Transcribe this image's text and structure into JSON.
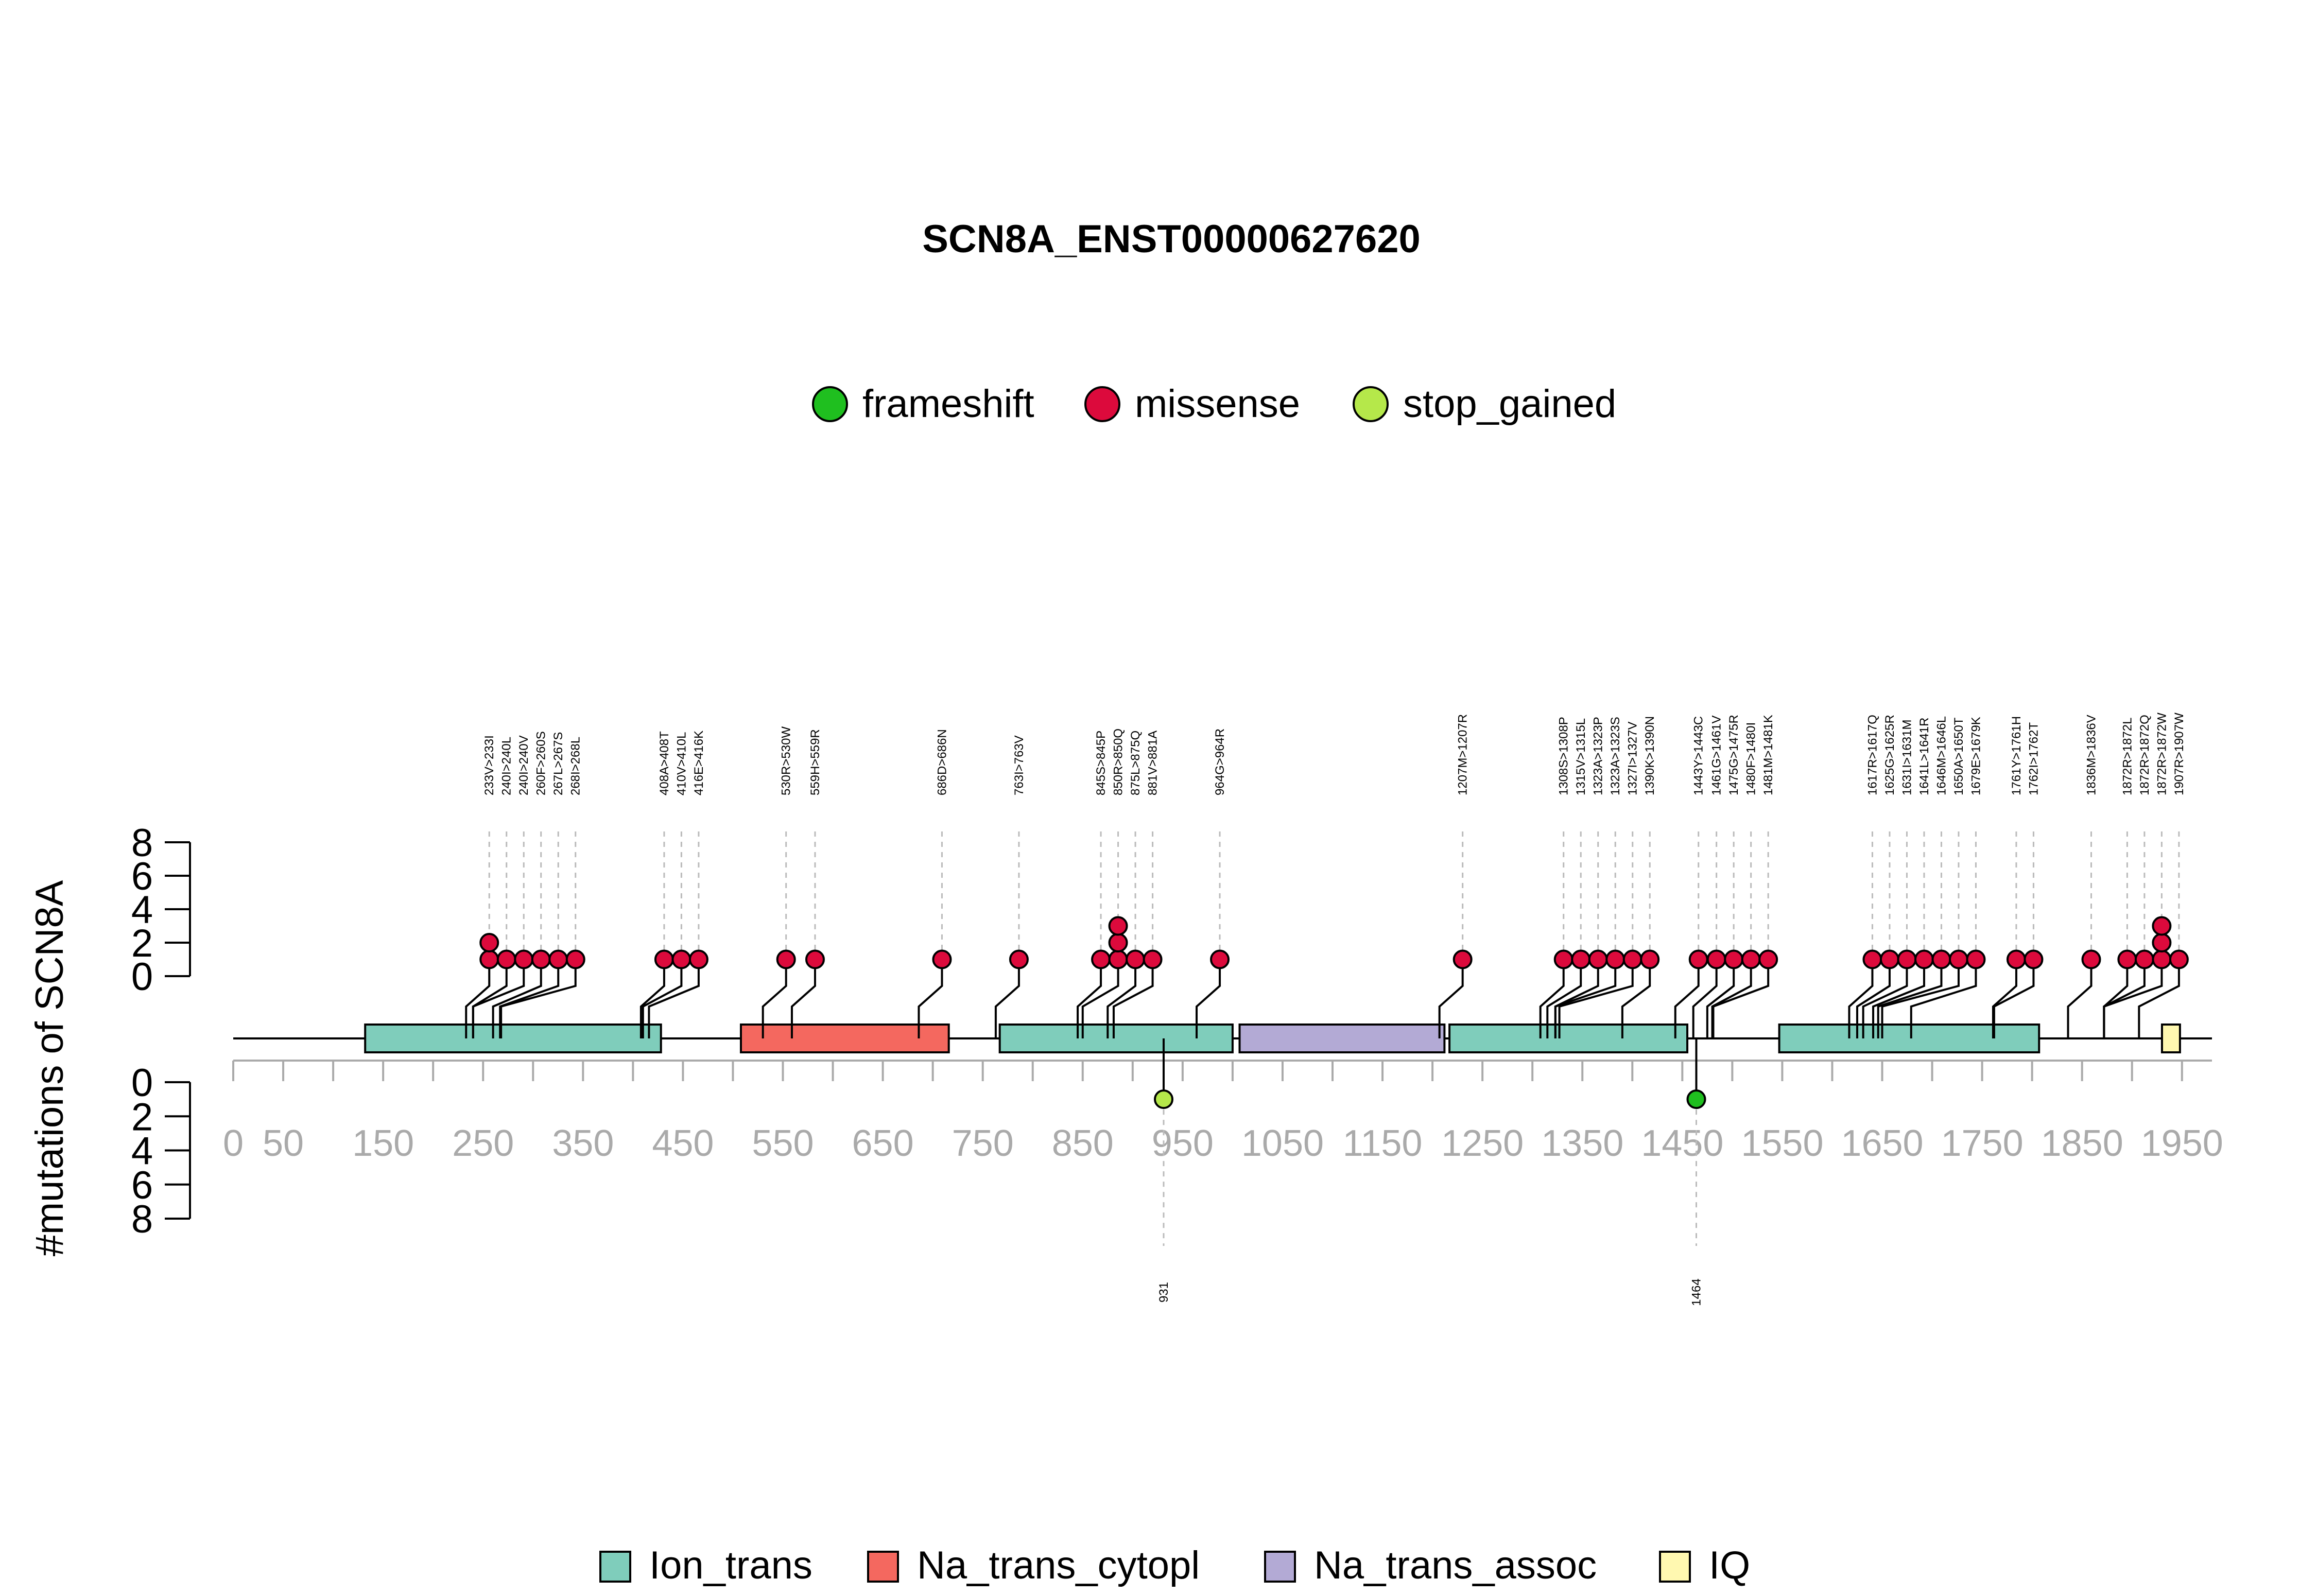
{
  "chart_data": {
    "type": "lollipop",
    "title": "SCN8A_ENST00000627620",
    "ylabel": "#mutations of SCN8A",
    "protein_length": 1980,
    "xlim": [
      0,
      1980
    ],
    "x_ticks": [
      "0",
      "50",
      "150",
      "250",
      "350",
      "450",
      "550",
      "650",
      "750",
      "850",
      "950",
      "1050",
      "1150",
      "1250",
      "1350",
      "1450",
      "1550",
      "1650",
      "1750",
      "1850",
      "1950"
    ],
    "upper_y_ticks": [
      "0",
      "2",
      "4",
      "6",
      "8"
    ],
    "lower_y_ticks": [
      "0",
      "2",
      "4",
      "6",
      "8"
    ],
    "ylim": [
      0,
      8
    ],
    "colors": {
      "frameshift": "#1fbf1f",
      "missense": "#dc0a3c",
      "stop_gained": "#b5e84a",
      "Ion_trans": "#7fcdbb",
      "Na_trans_cytopl": "#f4685f",
      "Na_trans_assoc": "#b3aad5",
      "IQ": "#fff8b0"
    },
    "variant_legend": [
      {
        "name": "frameshift",
        "color": "#1fbf1f"
      },
      {
        "name": "missense",
        "color": "#dc0a3c"
      },
      {
        "name": "stop_gained",
        "color": "#b5e84a"
      }
    ],
    "domain_legend": [
      {
        "name": "Ion_trans",
        "color": "#7fcdbb"
      },
      {
        "name": "Na_trans_cytopl",
        "color": "#f4685f"
      },
      {
        "name": "Na_trans_assoc",
        "color": "#b3aad5"
      },
      {
        "name": "IQ",
        "color": "#fff8b0"
      }
    ],
    "domains": [
      {
        "name": "Ion_trans",
        "start": 132,
        "end": 428
      },
      {
        "name": "Na_trans_cytopl",
        "start": 508,
        "end": 716
      },
      {
        "name": "Na_trans_assoc",
        "start": 1007,
        "end": 1212
      },
      {
        "name": "Ion_trans",
        "start": 767,
        "end": 1000
      },
      {
        "name": "Ion_trans",
        "start": 1217,
        "end": 1455
      },
      {
        "name": "Ion_trans",
        "start": 1547,
        "end": 1807
      },
      {
        "name": "IQ",
        "start": 1930,
        "end": 1948
      }
    ],
    "upper_groups": [
      {
        "labels": [
          "233V>233I"
        ],
        "positions": [
          233
        ],
        "count": 2
      },
      {
        "labels": [
          "240I>240L",
          "240I>240V",
          "260F>260S",
          "267L>267S",
          "268I>268L"
        ],
        "positions": [
          240,
          240,
          260,
          267,
          268
        ],
        "count": 1
      },
      {
        "labels": [
          "408A>408T",
          "410V>410L"
        ],
        "positions": [
          408,
          410
        ],
        "count": 1
      },
      {
        "labels": [
          "416E>416K"
        ],
        "positions": [
          416
        ],
        "count": 1
      },
      {
        "labels": [
          "530R>530W"
        ],
        "positions": [
          530
        ],
        "count": 1
      },
      {
        "labels": [
          "559H>559R"
        ],
        "positions": [
          559
        ],
        "count": 1
      },
      {
        "labels": [
          "686D>686N"
        ],
        "positions": [
          686
        ],
        "count": 1
      },
      {
        "labels": [
          "763I>763V"
        ],
        "positions": [
          763
        ],
        "count": 1
      },
      {
        "labels": [
          "845S>845P",
          "850R>850Q",
          "875L>875Q",
          "881V>881A"
        ],
        "positions": [
          845,
          850,
          875,
          881
        ],
        "count": 1,
        "special_counts": [
          1,
          3,
          1,
          1
        ]
      },
      {
        "labels": [
          "964G>964R"
        ],
        "positions": [
          964
        ],
        "count": 1
      },
      {
        "labels": [
          "1207M>1207R"
        ],
        "positions": [
          1207
        ],
        "count": 1
      },
      {
        "labels": [
          "1308S>1308P",
          "1315V>1315L"
        ],
        "positions": [
          1308,
          1315
        ],
        "count": 1
      },
      {
        "labels": [
          "1323A>1323P",
          "1323A>1323S",
          "1327I>1327V",
          "1390K>1390N"
        ],
        "positions": [
          1323,
          1323,
          1327,
          1390
        ],
        "count": 1
      },
      {
        "labels": [
          "1443Y>1443C"
        ],
        "positions": [
          1443
        ],
        "count": 1
      },
      {
        "labels": [
          "1461G>1461V"
        ],
        "positions": [
          1461
        ],
        "count": 1
      },
      {
        "labels": [
          "1475G>1475R",
          "1480F>1480I",
          "1481M>1481K"
        ],
        "positions": [
          1475,
          1480,
          1481
        ],
        "count": 1
      },
      {
        "labels": [
          "1617R>1617Q",
          "1625G>1625R",
          "1631I>1631M",
          "1641L>1641R",
          "1646M>1646L"
        ],
        "positions": [
          1617,
          1625,
          1631,
          1641,
          1646
        ],
        "count": 1
      },
      {
        "labels": [
          "1650A>1650T",
          "1679E>1679K"
        ],
        "positions": [
          1650,
          1679
        ],
        "count": 1
      },
      {
        "labels": [
          "1761Y>1761H",
          "1762I>1762T"
        ],
        "positions": [
          1761,
          1762
        ],
        "count": 1
      },
      {
        "labels": [
          "1836M>1836V",
          "1872R>1872L"
        ],
        "positions": [
          1836,
          1872
        ],
        "count": 1
      },
      {
        "labels": [
          "1872R>1872Q",
          "1872R>1872W",
          "1907R>1907W"
        ],
        "positions": [
          1872,
          1872,
          1907
        ],
        "count": 1,
        "special_counts": [
          1,
          3,
          1
        ]
      }
    ],
    "mutations_upper": [
      {
        "label": "233V>233I",
        "type": "missense",
        "count": 2
      },
      {
        "label": "240I>240L",
        "type": "missense",
        "count": 1
      },
      {
        "label": "240I>240V",
        "type": "missense",
        "count": 1
      },
      {
        "label": "260F>260S",
        "type": "missense",
        "count": 1
      },
      {
        "label": "267L>267S",
        "type": "missense",
        "count": 1
      },
      {
        "label": "268I>268L",
        "type": "missense",
        "count": 1
      },
      {
        "label": "408A>408T",
        "type": "missense",
        "count": 1
      },
      {
        "label": "410V>410L",
        "type": "missense",
        "count": 1
      },
      {
        "label": "416E>416K",
        "type": "missense",
        "count": 1
      },
      {
        "label": "530R>530W",
        "type": "missense",
        "count": 1
      },
      {
        "label": "559H>559R",
        "type": "missense",
        "count": 1
      },
      {
        "label": "686D>686N",
        "type": "missense",
        "count": 1
      },
      {
        "label": "763I>763V",
        "type": "missense",
        "count": 1
      },
      {
        "label": "845S>845P",
        "type": "missense",
        "count": 1
      },
      {
        "label": "850R>850Q",
        "type": "missense",
        "count": 3
      },
      {
        "label": "875L>875Q",
        "type": "missense",
        "count": 1
      },
      {
        "label": "881V>881A",
        "type": "missense",
        "count": 1
      },
      {
        "label": "964G>964R",
        "type": "missense",
        "count": 1
      },
      {
        "label": "1207M>1207R",
        "type": "missense",
        "count": 1
      },
      {
        "label": "1308S>1308P",
        "type": "missense",
        "count": 1
      },
      {
        "label": "1315V>1315L",
        "type": "missense",
        "count": 1
      },
      {
        "label": "1323A>1323P",
        "type": "missense",
        "count": 1
      },
      {
        "label": "1323A>1323S",
        "type": "missense",
        "count": 1
      },
      {
        "label": "1327I>1327V",
        "type": "missense",
        "count": 1
      },
      {
        "label": "1390K>1390N",
        "type": "missense",
        "count": 1
      },
      {
        "label": "1443Y>1443C",
        "type": "missense",
        "count": 1
      },
      {
        "label": "1461G>1461V",
        "type": "missense",
        "count": 1
      },
      {
        "label": "1475G>1475R",
        "type": "missense",
        "count": 1
      },
      {
        "label": "1480F>1480I",
        "type": "missense",
        "count": 1
      },
      {
        "label": "1481M>1481K",
        "type": "missense",
        "count": 1
      },
      {
        "label": "1617R>1617Q",
        "type": "missense",
        "count": 1
      },
      {
        "label": "1625G>1625R",
        "type": "missense",
        "count": 1
      },
      {
        "label": "1631I>1631M",
        "type": "missense",
        "count": 1
      },
      {
        "label": "1641L>1641R",
        "type": "missense",
        "count": 1
      },
      {
        "label": "1646M>1646L",
        "type": "missense",
        "count": 1
      },
      {
        "label": "1650A>1650T",
        "type": "missense",
        "count": 1
      },
      {
        "label": "1679E>1679K",
        "type": "missense",
        "count": 1
      },
      {
        "label": "1761Y>1761H",
        "type": "missense",
        "count": 1
      },
      {
        "label": "1762I>1762T",
        "type": "missense",
        "count": 1
      },
      {
        "label": "1836M>1836V",
        "type": "missense",
        "count": 1
      },
      {
        "label": "1872R>1872L",
        "type": "missense",
        "count": 1
      },
      {
        "label": "1872R>1872Q",
        "type": "missense",
        "count": 1
      },
      {
        "label": "1872R>1872W",
        "type": "missense",
        "count": 3
      },
      {
        "label": "1907R>1907W",
        "type": "missense",
        "count": 1
      }
    ],
    "mutations_lower": [
      {
        "label": "931",
        "type": "stop_gained",
        "count": 1
      },
      {
        "label": "1464",
        "type": "frameshift",
        "count": 1
      }
    ]
  }
}
